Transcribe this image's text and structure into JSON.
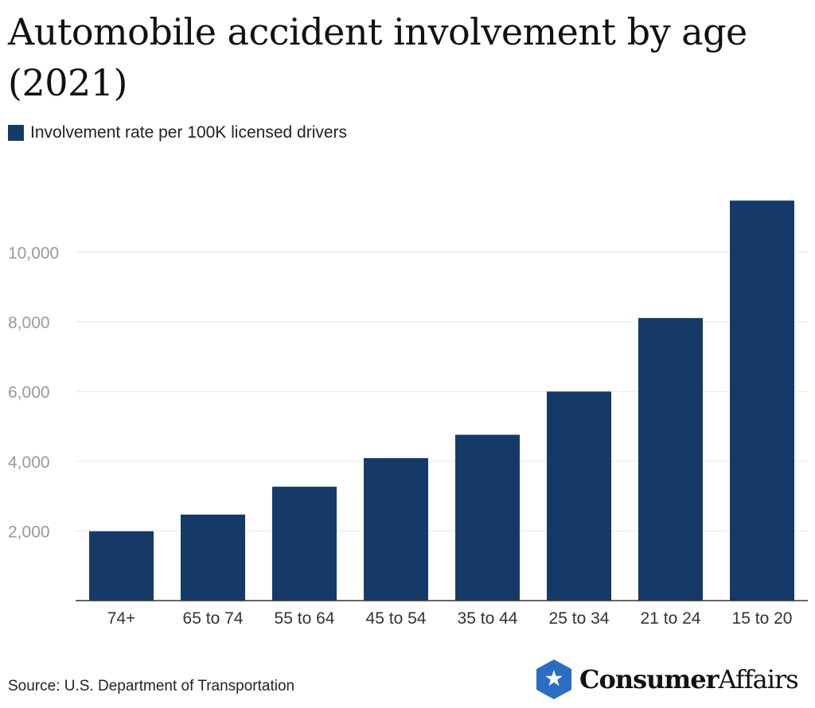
{
  "title": "Automobile accident involvement by age (2021)",
  "source": "Source: U.S. Department of Transportation",
  "brand": {
    "part1": "Consumer",
    "part2": "Affairs",
    "icon": "star-hexagon-icon"
  },
  "colors": {
    "bar": "#163a68",
    "grid": "#e6e6e6",
    "axis": "#333333",
    "brand_blue": "#2b6cc4"
  },
  "chart_data": {
    "type": "bar",
    "categories": [
      "74+",
      "65 to 74",
      "55 to 64",
      "45 to 54",
      "35 to 44",
      "25 to 34",
      "21 to 24",
      "15 to 20"
    ],
    "series": [
      {
        "name": "Involvement rate per 100K licensed drivers",
        "values": [
          1990,
          2470,
          3270,
          4090,
          4760,
          6000,
          8110,
          11480
        ]
      }
    ],
    "yticks": [
      2000,
      4000,
      6000,
      8000,
      10000
    ],
    "ytick_labels": [
      "2,000",
      "4,000",
      "6,000",
      "8,000",
      "10,000"
    ],
    "ylim": [
      0,
      12000
    ],
    "grid": true,
    "legend": "top-left"
  }
}
